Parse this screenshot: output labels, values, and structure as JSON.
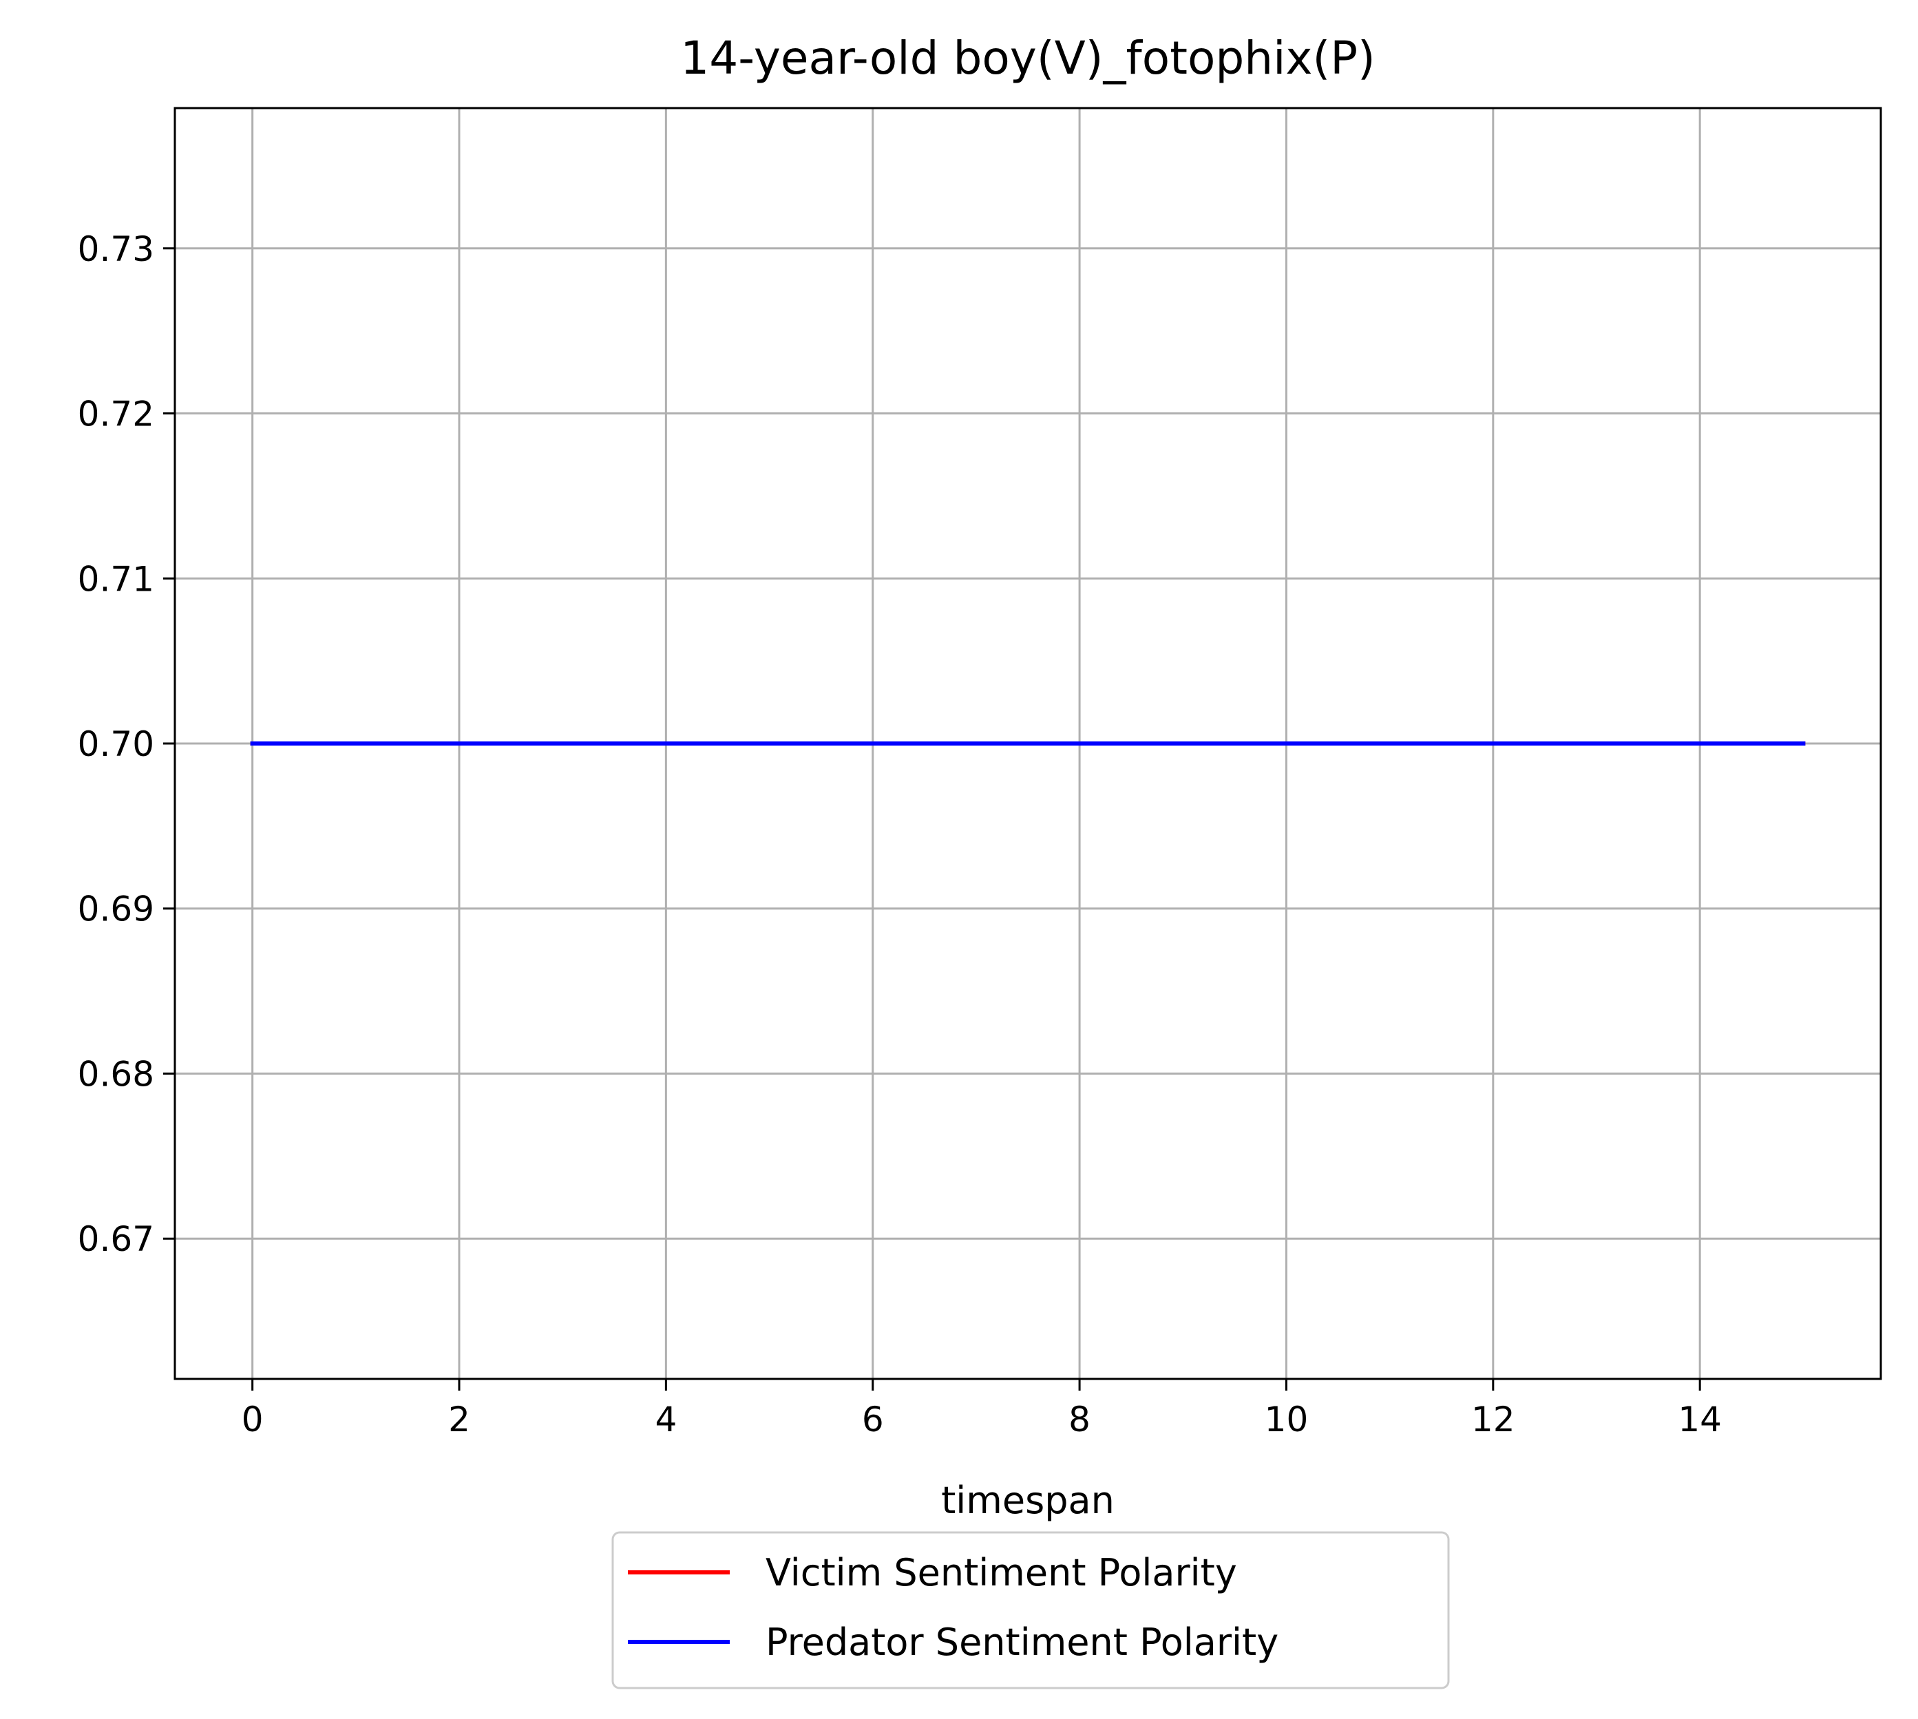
{
  "chart_data": {
    "type": "line",
    "title": "14-year-old boy(V)_fotophix(P)",
    "xlabel": "timespan",
    "ylabel": "",
    "xlim": [
      -0.75,
      15.75
    ],
    "ylim": [
      0.6615,
      0.7385
    ],
    "xticks": [
      0,
      2,
      4,
      6,
      8,
      10,
      12,
      14
    ],
    "xtick_labels": [
      "0",
      "2",
      "4",
      "6",
      "8",
      "10",
      "12",
      "14"
    ],
    "yticks": [
      0.67,
      0.68,
      0.69,
      0.7,
      0.71,
      0.72,
      0.73
    ],
    "ytick_labels": [
      "0.67",
      "0.68",
      "0.69",
      "0.70",
      "0.71",
      "0.72",
      "0.73"
    ],
    "grid": true,
    "legend_position": "below-center",
    "series": [
      {
        "name": "Victim Sentiment Polarity",
        "color": "#ff0000",
        "x": [
          0,
          1,
          2,
          3,
          4,
          5,
          6,
          7,
          8,
          9,
          10,
          11,
          12,
          13,
          14,
          15
        ],
        "y": [
          0.7,
          0.7,
          0.7,
          0.7,
          0.7,
          0.7,
          0.7,
          0.7,
          0.7,
          0.7,
          0.7,
          0.7,
          0.7,
          0.7,
          0.7,
          0.7
        ]
      },
      {
        "name": "Predator Sentiment Polarity",
        "color": "#0000ff",
        "x": [
          0,
          1,
          2,
          3,
          4,
          5,
          6,
          7,
          8,
          9,
          10,
          11,
          12,
          13,
          14,
          15
        ],
        "y": [
          0.7,
          0.7,
          0.7,
          0.7,
          0.7,
          0.7,
          0.7,
          0.7,
          0.7,
          0.7,
          0.7,
          0.7,
          0.7,
          0.7,
          0.7,
          0.7
        ]
      }
    ]
  }
}
